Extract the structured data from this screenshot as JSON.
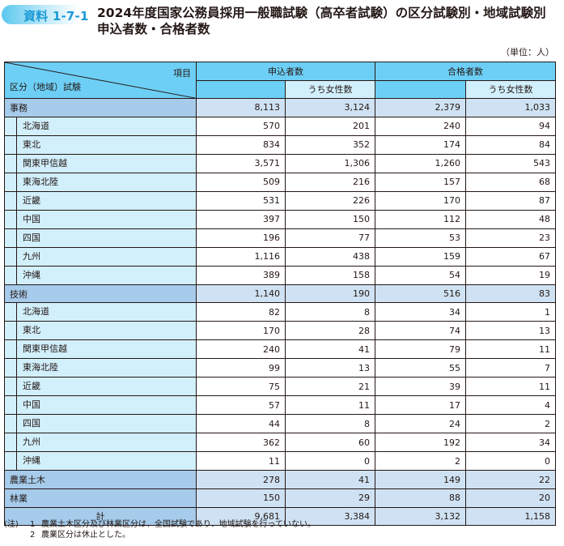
{
  "header": {
    "badge": "資料 1-7-1",
    "title": "2024年度国家公務員採用一般職試験（高卒者試験）の区分試験別・地域試験別申込者数・合格者数",
    "unit": "（単位：人）"
  },
  "table": {
    "corner_item": "項目",
    "corner_category": "区分（地域）試験",
    "group_applicants": "申込者数",
    "group_passers": "合格者数",
    "sub_female": "うち女性数",
    "rows": [
      {
        "type": "cat",
        "label": "事務",
        "applicants": "8,113",
        "applicants_female": "3,124",
        "passers": "2,379",
        "passers_female": "1,033"
      },
      {
        "type": "sub",
        "label": "北海道",
        "applicants": "570",
        "applicants_female": "201",
        "passers": "240",
        "passers_female": "94"
      },
      {
        "type": "sub",
        "label": "東北",
        "applicants": "834",
        "applicants_female": "352",
        "passers": "174",
        "passers_female": "84"
      },
      {
        "type": "sub",
        "label": "関東甲信越",
        "applicants": "3,571",
        "applicants_female": "1,306",
        "passers": "1,260",
        "passers_female": "543"
      },
      {
        "type": "sub",
        "label": "東海北陸",
        "applicants": "509",
        "applicants_female": "216",
        "passers": "157",
        "passers_female": "68"
      },
      {
        "type": "sub",
        "label": "近畿",
        "applicants": "531",
        "applicants_female": "226",
        "passers": "170",
        "passers_female": "87"
      },
      {
        "type": "sub",
        "label": "中国",
        "applicants": "397",
        "applicants_female": "150",
        "passers": "112",
        "passers_female": "48"
      },
      {
        "type": "sub",
        "label": "四国",
        "applicants": "196",
        "applicants_female": "77",
        "passers": "53",
        "passers_female": "23"
      },
      {
        "type": "sub",
        "label": "九州",
        "applicants": "1,116",
        "applicants_female": "438",
        "passers": "159",
        "passers_female": "67"
      },
      {
        "type": "sub",
        "label": "沖縄",
        "applicants": "389",
        "applicants_female": "158",
        "passers": "54",
        "passers_female": "19"
      },
      {
        "type": "cat",
        "label": "技術",
        "applicants": "1,140",
        "applicants_female": "190",
        "passers": "516",
        "passers_female": "83"
      },
      {
        "type": "sub",
        "label": "北海道",
        "applicants": "82",
        "applicants_female": "8",
        "passers": "34",
        "passers_female": "1"
      },
      {
        "type": "sub",
        "label": "東北",
        "applicants": "170",
        "applicants_female": "28",
        "passers": "74",
        "passers_female": "13"
      },
      {
        "type": "sub",
        "label": "関東甲信越",
        "applicants": "240",
        "applicants_female": "41",
        "passers": "79",
        "passers_female": "11"
      },
      {
        "type": "sub",
        "label": "東海北陸",
        "applicants": "99",
        "applicants_female": "13",
        "passers": "55",
        "passers_female": "7"
      },
      {
        "type": "sub",
        "label": "近畿",
        "applicants": "75",
        "applicants_female": "21",
        "passers": "39",
        "passers_female": "11"
      },
      {
        "type": "sub",
        "label": "中国",
        "applicants": "57",
        "applicants_female": "11",
        "passers": "17",
        "passers_female": "4"
      },
      {
        "type": "sub",
        "label": "四国",
        "applicants": "44",
        "applicants_female": "8",
        "passers": "24",
        "passers_female": "2"
      },
      {
        "type": "sub",
        "label": "九州",
        "applicants": "362",
        "applicants_female": "60",
        "passers": "192",
        "passers_female": "34"
      },
      {
        "type": "sub",
        "label": "沖縄",
        "applicants": "11",
        "applicants_female": "0",
        "passers": "2",
        "passers_female": "0"
      },
      {
        "type": "cat",
        "label": "農業土木",
        "applicants": "278",
        "applicants_female": "41",
        "passers": "149",
        "passers_female": "22"
      },
      {
        "type": "cat",
        "label": "林業",
        "applicants": "150",
        "applicants_female": "29",
        "passers": "88",
        "passers_female": "20"
      },
      {
        "type": "total",
        "label": "計",
        "applicants": "9,681",
        "applicants_female": "3,384",
        "passers": "3,132",
        "passers_female": "1,158"
      }
    ]
  },
  "notes": {
    "prefix": "(注)",
    "items": [
      {
        "num": "1",
        "text": "農業土木区分及び林業区分は、全国試験であり、地域試験を行っていない。"
      },
      {
        "num": "2",
        "text": "農業区分は休止とした。"
      }
    ]
  },
  "colors": {
    "header_bg": "#6dcff6",
    "subheader_bg": "#d2effc",
    "category_label_bg": "#a6cbeb",
    "category_value_bg": "#cfe2f3",
    "region_label_bg": "#d2effc",
    "badge_text": "#1a9ad6"
  }
}
